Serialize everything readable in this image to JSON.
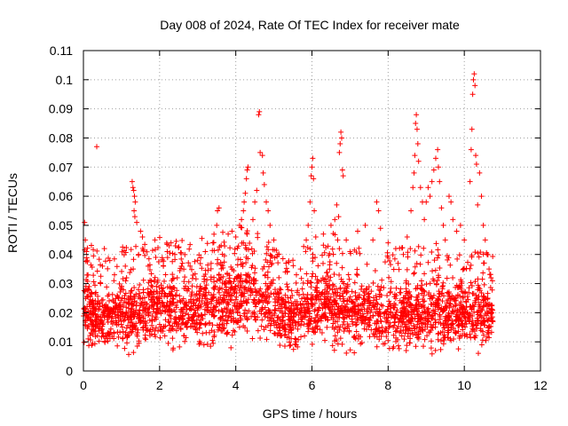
{
  "chart_data": {
    "type": "scatter",
    "title": "Day 008 of 2024, Rate Of TEC Index for receiver mate",
    "xlabel": "GPS time / hours",
    "ylabel": "ROTI / TECUs",
    "xlim": [
      0,
      12
    ],
    "ylim": [
      0,
      0.11
    ],
    "xticks": [
      0,
      2,
      4,
      6,
      8,
      10,
      12
    ],
    "xtick_labels": [
      "0",
      "2",
      "4",
      "6",
      "8",
      "10",
      "12"
    ],
    "yticks": [
      0,
      0.01,
      0.02,
      0.03,
      0.04,
      0.05,
      0.06,
      0.07,
      0.08,
      0.09,
      0.1,
      0.11
    ],
    "ytick_labels": [
      "0",
      "0.01",
      "0.02",
      "0.03",
      "0.04",
      "0.05",
      "0.06",
      "0.07",
      "0.08",
      "0.09",
      "0.1",
      "0.11"
    ],
    "grid": true,
    "marker": "+",
    "color": "#ff0000",
    "series": [
      {
        "name": "ROTI",
        "points": [
          [
            0.03,
            0.051
          ],
          [
            0.05,
            0.045
          ],
          [
            0.08,
            0.041
          ],
          [
            0.1,
            0.038
          ],
          [
            0.12,
            0.033
          ],
          [
            0.15,
            0.029
          ],
          [
            0.2,
            0.027
          ],
          [
            0.25,
            0.024
          ],
          [
            0.35,
            0.077
          ],
          [
            0.45,
            0.03
          ],
          [
            0.5,
            0.036
          ],
          [
            0.55,
            0.042
          ],
          [
            0.8,
            0.031
          ],
          [
            1.0,
            0.028
          ],
          [
            1.1,
            0.036
          ],
          [
            1.28,
            0.065
          ],
          [
            1.3,
            0.063
          ],
          [
            1.32,
            0.062
          ],
          [
            1.34,
            0.06
          ],
          [
            1.36,
            0.058
          ],
          [
            1.33,
            0.055
          ],
          [
            1.35,
            0.053
          ],
          [
            1.4,
            0.051
          ],
          [
            1.5,
            0.048
          ],
          [
            1.55,
            0.046
          ],
          [
            1.45,
            0.04
          ],
          [
            1.7,
            0.036
          ],
          [
            1.9,
            0.039
          ],
          [
            2.1,
            0.036
          ],
          [
            2.2,
            0.041
          ],
          [
            2.25,
            0.043
          ],
          [
            2.3,
            0.044
          ],
          [
            2.4,
            0.04
          ],
          [
            2.6,
            0.037
          ],
          [
            2.8,
            0.036
          ],
          [
            3.0,
            0.038
          ],
          [
            3.2,
            0.041
          ],
          [
            3.4,
            0.044
          ],
          [
            3.5,
            0.05
          ],
          [
            3.52,
            0.055
          ],
          [
            3.56,
            0.056
          ],
          [
            3.8,
            0.047
          ],
          [
            3.9,
            0.048
          ],
          [
            4.0,
            0.046
          ],
          [
            4.1,
            0.05
          ],
          [
            4.15,
            0.052
          ],
          [
            4.2,
            0.055
          ],
          [
            4.22,
            0.058
          ],
          [
            4.25,
            0.061
          ],
          [
            4.28,
            0.066
          ],
          [
            4.3,
            0.069
          ],
          [
            4.32,
            0.07
          ],
          [
            4.45,
            0.052
          ],
          [
            4.5,
            0.058
          ],
          [
            4.55,
            0.062
          ],
          [
            4.6,
            0.088
          ],
          [
            4.62,
            0.089
          ],
          [
            4.64,
            0.075
          ],
          [
            4.7,
            0.074
          ],
          [
            4.72,
            0.068
          ],
          [
            4.75,
            0.064
          ],
          [
            4.8,
            0.058
          ],
          [
            4.85,
            0.055
          ],
          [
            4.9,
            0.05
          ],
          [
            5.0,
            0.045
          ],
          [
            5.1,
            0.04
          ],
          [
            5.3,
            0.034
          ],
          [
            5.5,
            0.038
          ],
          [
            5.7,
            0.035
          ],
          [
            5.85,
            0.045
          ],
          [
            5.9,
            0.05
          ],
          [
            5.95,
            0.058
          ],
          [
            5.98,
            0.067
          ],
          [
            6.0,
            0.07
          ],
          [
            6.02,
            0.073
          ],
          [
            6.04,
            0.066
          ],
          [
            6.06,
            0.055
          ],
          [
            6.1,
            0.046
          ],
          [
            6.3,
            0.047
          ],
          [
            6.5,
            0.05
          ],
          [
            6.6,
            0.052
          ],
          [
            6.65,
            0.057
          ],
          [
            6.7,
            0.053
          ],
          [
            6.72,
            0.075
          ],
          [
            6.74,
            0.078
          ],
          [
            6.76,
            0.082
          ],
          [
            6.78,
            0.08
          ],
          [
            6.8,
            0.069
          ],
          [
            6.82,
            0.067
          ],
          [
            6.9,
            0.045
          ],
          [
            7.0,
            0.041
          ],
          [
            7.2,
            0.048
          ],
          [
            7.4,
            0.05
          ],
          [
            7.6,
            0.045
          ],
          [
            7.7,
            0.058
          ],
          [
            7.75,
            0.055
          ],
          [
            7.8,
            0.049
          ],
          [
            8.0,
            0.044
          ],
          [
            8.2,
            0.042
          ],
          [
            8.4,
            0.04
          ],
          [
            8.5,
            0.046
          ],
          [
            8.6,
            0.055
          ],
          [
            8.65,
            0.063
          ],
          [
            8.68,
            0.068
          ],
          [
            8.7,
            0.074
          ],
          [
            8.72,
            0.085
          ],
          [
            8.74,
            0.088
          ],
          [
            8.76,
            0.083
          ],
          [
            8.78,
            0.078
          ],
          [
            8.8,
            0.072
          ],
          [
            8.85,
            0.063
          ],
          [
            8.9,
            0.058
          ],
          [
            8.95,
            0.052
          ],
          [
            9.0,
            0.058
          ],
          [
            9.05,
            0.063
          ],
          [
            9.1,
            0.06
          ],
          [
            9.15,
            0.065
          ],
          [
            9.2,
            0.069
          ],
          [
            9.25,
            0.073
          ],
          [
            9.3,
            0.076
          ],
          [
            9.32,
            0.07
          ],
          [
            9.35,
            0.065
          ],
          [
            9.4,
            0.056
          ],
          [
            9.45,
            0.05
          ],
          [
            9.5,
            0.045
          ],
          [
            9.6,
            0.06
          ],
          [
            9.65,
            0.058
          ],
          [
            9.7,
            0.052
          ],
          [
            9.8,
            0.048
          ],
          [
            9.9,
            0.05
          ],
          [
            10.0,
            0.045
          ],
          [
            10.15,
            0.065
          ],
          [
            10.18,
            0.076
          ],
          [
            10.2,
            0.083
          ],
          [
            10.22,
            0.095
          ],
          [
            10.24,
            0.1
          ],
          [
            10.26,
            0.102
          ],
          [
            10.28,
            0.098
          ],
          [
            10.3,
            0.074
          ],
          [
            10.32,
            0.071
          ],
          [
            10.35,
            0.057
          ],
          [
            10.4,
            0.068
          ],
          [
            10.45,
            0.06
          ],
          [
            10.5,
            0.05
          ],
          [
            10.55,
            0.045
          ],
          [
            10.6,
            0.04
          ],
          [
            10.65,
            0.035
          ],
          [
            10.7,
            0.032
          ]
        ],
        "bands": [
          [
            0.0,
            0.012,
            0.034
          ],
          [
            0.3,
            0.007,
            0.031
          ],
          [
            0.6,
            0.008,
            0.027
          ],
          [
            0.9,
            0.009,
            0.029
          ],
          [
            1.2,
            0.007,
            0.033
          ],
          [
            1.5,
            0.009,
            0.031
          ],
          [
            1.8,
            0.01,
            0.033
          ],
          [
            2.1,
            0.01,
            0.035
          ],
          [
            2.4,
            0.009,
            0.035
          ],
          [
            2.7,
            0.01,
            0.032
          ],
          [
            3.0,
            0.009,
            0.033
          ],
          [
            3.3,
            0.009,
            0.035
          ],
          [
            3.6,
            0.01,
            0.036
          ],
          [
            3.9,
            0.01,
            0.038
          ],
          [
            4.2,
            0.012,
            0.042
          ],
          [
            4.5,
            0.012,
            0.04
          ],
          [
            4.8,
            0.01,
            0.036
          ],
          [
            5.1,
            0.008,
            0.031
          ],
          [
            5.4,
            0.007,
            0.028
          ],
          [
            5.7,
            0.008,
            0.031
          ],
          [
            6.0,
            0.01,
            0.034
          ],
          [
            6.3,
            0.011,
            0.036
          ],
          [
            6.6,
            0.01,
            0.036
          ],
          [
            6.9,
            0.008,
            0.033
          ],
          [
            7.2,
            0.009,
            0.033
          ],
          [
            7.5,
            0.009,
            0.032
          ],
          [
            7.8,
            0.008,
            0.03
          ],
          [
            8.1,
            0.009,
            0.031
          ],
          [
            8.4,
            0.008,
            0.032
          ],
          [
            8.7,
            0.008,
            0.032
          ],
          [
            9.0,
            0.009,
            0.033
          ],
          [
            9.3,
            0.008,
            0.033
          ],
          [
            9.6,
            0.008,
            0.031
          ],
          [
            9.9,
            0.009,
            0.029
          ],
          [
            10.2,
            0.008,
            0.031
          ],
          [
            10.5,
            0.009,
            0.03
          ],
          [
            10.75,
            0.01,
            0.029
          ]
        ],
        "x_range": [
          0,
          10.75
        ]
      }
    ]
  }
}
